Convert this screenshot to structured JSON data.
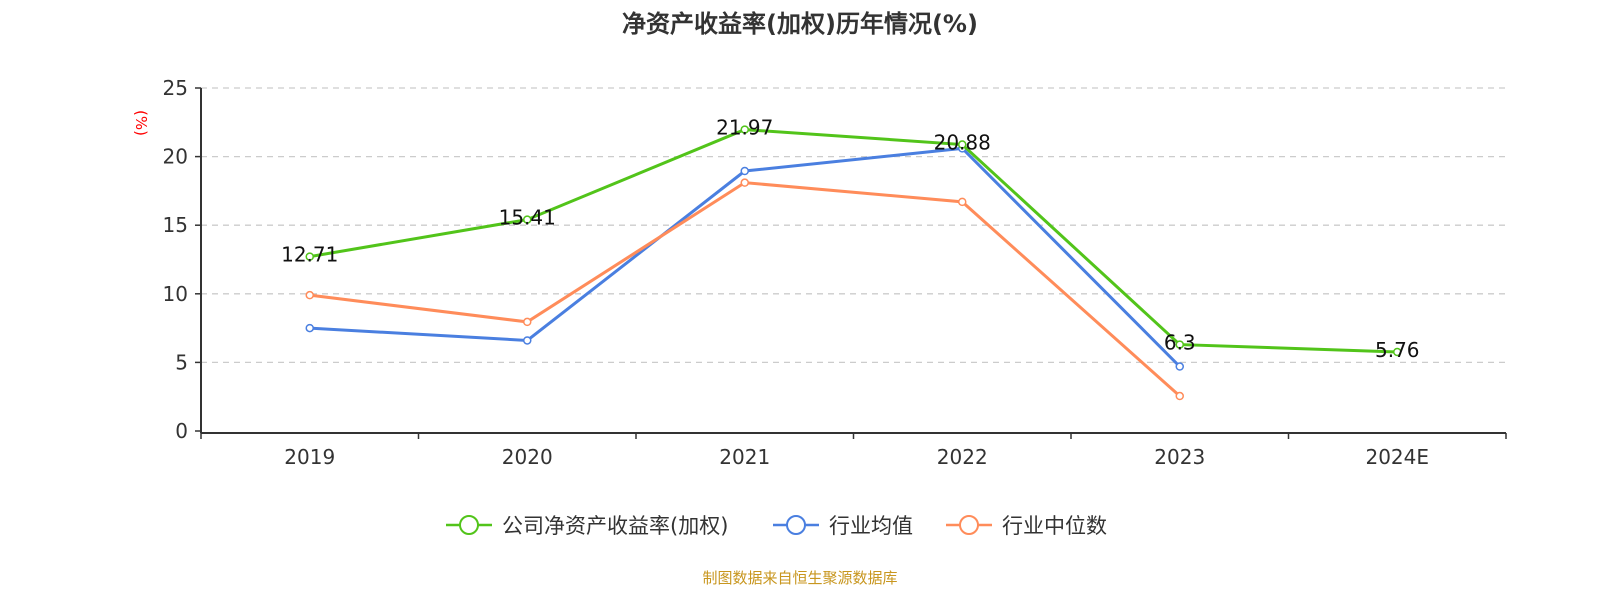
{
  "chart_data": {
    "type": "line",
    "title": "净资产收益率(加权)历年情况(%)",
    "ylabel": "(%)",
    "xlabel": "",
    "ylim": [
      0,
      25
    ],
    "yticks": [
      0,
      5,
      10,
      15,
      20,
      25
    ],
    "grid": true,
    "legend_position": "bottom",
    "categories": [
      "2019",
      "2020",
      "2021",
      "2022",
      "2023",
      "2024E"
    ],
    "series": [
      {
        "name": "公司净资产收益率(加权)",
        "color": "#52c41a",
        "values": [
          12.71,
          15.41,
          21.97,
          20.88,
          6.3,
          5.76
        ],
        "labels": [
          "12.71",
          "15.41",
          "21.97",
          "20.88",
          "6.3",
          "5.76"
        ]
      },
      {
        "name": "行业均值",
        "color": "#4a7fe0",
        "values": [
          7.5,
          6.6,
          18.95,
          20.6,
          4.7,
          null
        ]
      },
      {
        "name": "行业中位数",
        "color": "#ff8c5a",
        "values": [
          9.9,
          7.95,
          18.1,
          16.7,
          2.55,
          null
        ]
      }
    ]
  },
  "footer": "制图数据来自恒生聚源数据库"
}
